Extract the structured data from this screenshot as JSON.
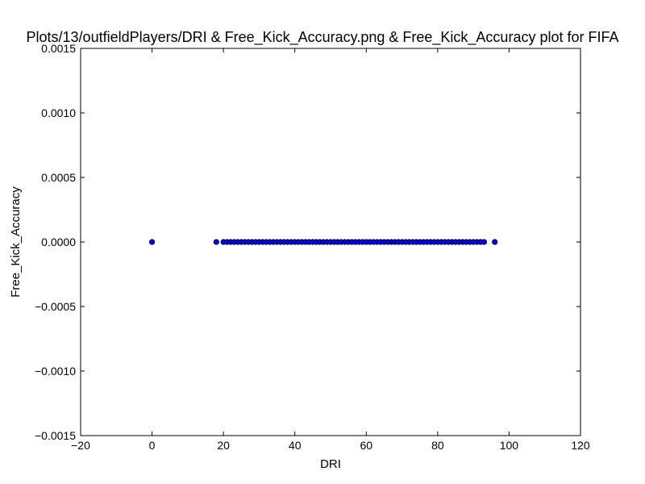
{
  "chart_data": {
    "type": "scatter",
    "title": "Plots/13/outfieldPlayers/DRI & Free_Kick_Accuracy.png & Free_Kick_Accuracy plot for FIFA",
    "xlabel": "DRI",
    "ylabel": "Free_Kick_Accuracy",
    "xlim": [
      -20,
      120
    ],
    "ylim": [
      -0.0015,
      0.0015
    ],
    "xticks": [
      -20,
      0,
      20,
      40,
      60,
      80,
      100,
      120
    ],
    "xtick_labels": [
      "−20",
      "0",
      "20",
      "40",
      "60",
      "80",
      "100",
      "120"
    ],
    "yticks": [
      -0.0015,
      -0.001,
      -0.0005,
      0,
      0.0005,
      0.001,
      0.0015
    ],
    "ytick_labels": [
      "−0.0015",
      "−0.0010",
      "−0.0005",
      "0.0000",
      "0.0005",
      "0.0010",
      "0.0015"
    ],
    "grid": false,
    "marker_color": "#0000ff",
    "series": [
      {
        "x": [
          0,
          18,
          20,
          21,
          22,
          23,
          24,
          25,
          26,
          27,
          28,
          29,
          30,
          31,
          32,
          33,
          34,
          35,
          36,
          37,
          38,
          39,
          40,
          41,
          42,
          43,
          44,
          45,
          46,
          47,
          48,
          49,
          50,
          51,
          52,
          53,
          54,
          55,
          56,
          57,
          58,
          59,
          60,
          61,
          62,
          63,
          64,
          65,
          66,
          67,
          68,
          69,
          70,
          71,
          72,
          73,
          74,
          75,
          76,
          77,
          78,
          79,
          80,
          81,
          82,
          83,
          84,
          85,
          86,
          87,
          88,
          89,
          90,
          91,
          92,
          93,
          96
        ],
        "y": [
          0,
          0,
          0,
          0,
          0,
          0,
          0,
          0,
          0,
          0,
          0,
          0,
          0,
          0,
          0,
          0,
          0,
          0,
          0,
          0,
          0,
          0,
          0,
          0,
          0,
          0,
          0,
          0,
          0,
          0,
          0,
          0,
          0,
          0,
          0,
          0,
          0,
          0,
          0,
          0,
          0,
          0,
          0,
          0,
          0,
          0,
          0,
          0,
          0,
          0,
          0,
          0,
          0,
          0,
          0,
          0,
          0,
          0,
          0,
          0,
          0,
          0,
          0,
          0,
          0,
          0,
          0,
          0,
          0,
          0,
          0,
          0,
          0,
          0,
          0,
          0,
          0
        ]
      }
    ]
  }
}
